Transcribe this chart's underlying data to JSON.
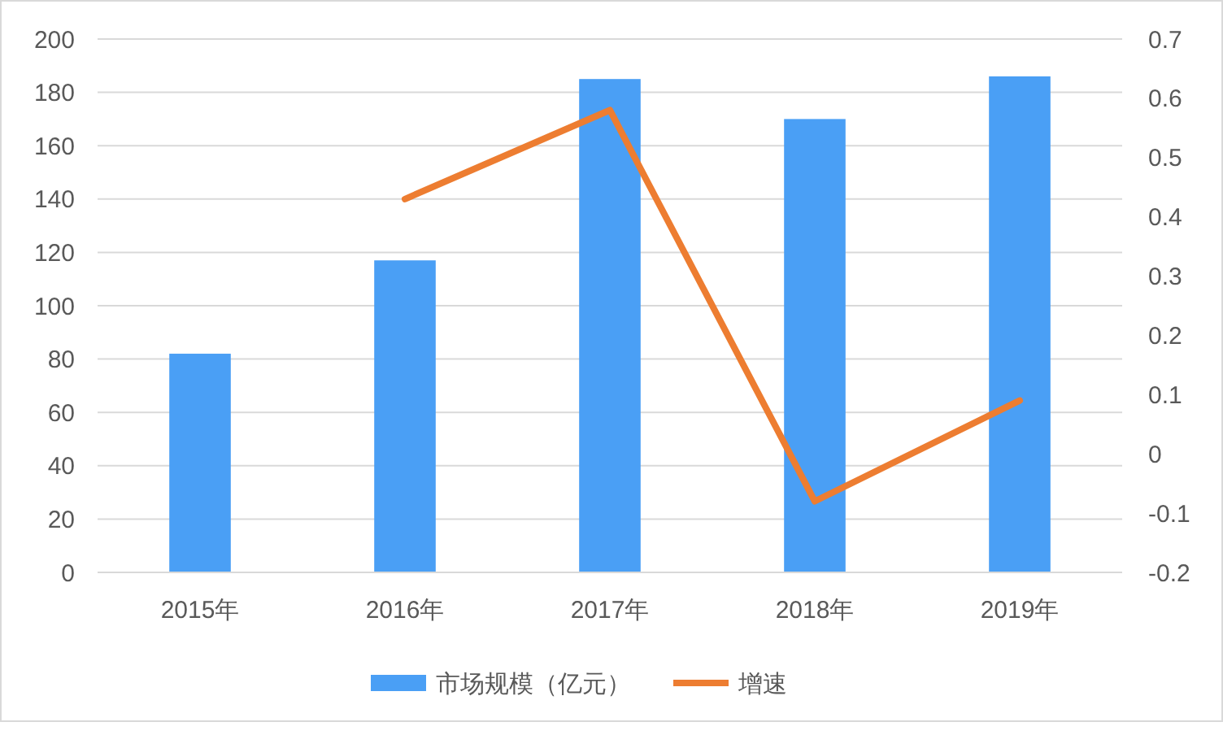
{
  "chart_data": {
    "type": "bar",
    "categories": [
      "2015年",
      "2016年",
      "2017年",
      "2018年",
      "2019年"
    ],
    "series": [
      {
        "name": "市场规模（亿元）",
        "color": "#4a9ff5",
        "values": [
          82,
          117,
          185,
          170,
          186
        ]
      },
      {
        "name": "增速",
        "type": "line",
        "axis": "y2",
        "color": "#ed7d31",
        "values": [
          null,
          0.43,
          0.58,
          -0.08,
          0.09
        ]
      }
    ],
    "ylim": [
      0,
      200
    ],
    "yticks": [
      0,
      20,
      40,
      60,
      80,
      100,
      120,
      140,
      160,
      180,
      200
    ],
    "y2lim": [
      -0.2,
      0.7
    ],
    "y2ticks": [
      -0.2,
      -0.1,
      0,
      0.1,
      0.2,
      0.3,
      0.4,
      0.5,
      0.6,
      0.7
    ],
    "grid": "y",
    "legend": "bottom",
    "marker": "none",
    "line_style": "solid"
  }
}
